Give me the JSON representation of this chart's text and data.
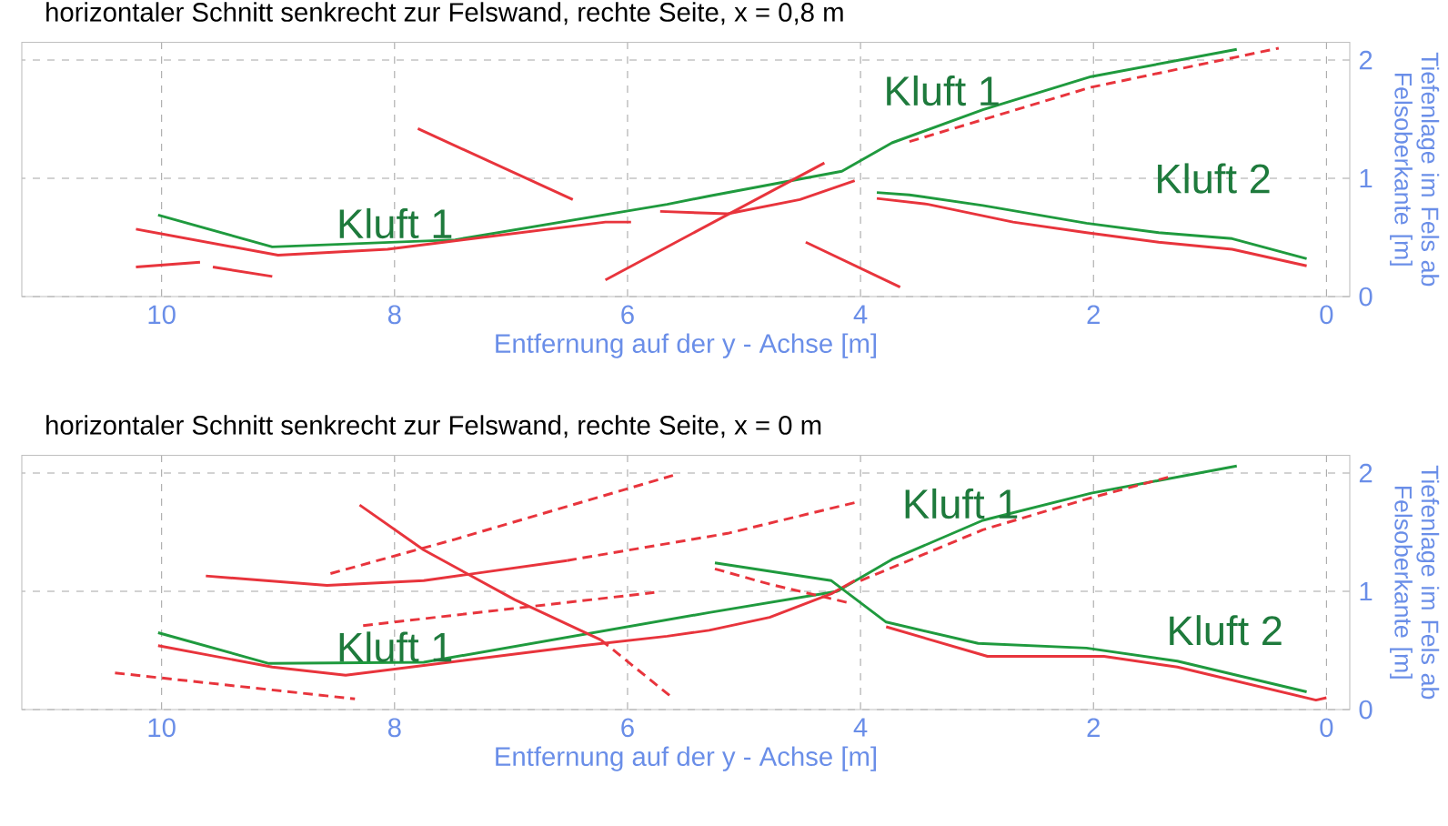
{
  "chart_data": [
    {
      "type": "line",
      "title": "horizontaler Schnitt senkrecht zur Felswand, rechte Seite, x = 0,8 m",
      "xlabel": "Entfernung auf der y - Achse [m]",
      "ylabel": "Tiefenlage im Fels ab Felsoberkante [m]",
      "xlim": [
        11.2,
        -0.2
      ],
      "xticks": [
        10,
        8,
        6,
        4,
        2,
        0
      ],
      "ylim": [
        0,
        2.15
      ],
      "yticks": [
        0,
        1,
        2
      ],
      "grid": true,
      "annotations": [
        "Kluft 1",
        "Kluft 1",
        "Kluft 2"
      ],
      "series": [
        {
          "color": "#1f9a3e",
          "x": [
            10.03,
            9.05,
            7.48,
            5.66,
            5.3,
            4.16,
            3.73,
            2.95,
            2.02,
            0.77
          ],
          "values": [
            0.69,
            0.42,
            0.48,
            0.78,
            0.85,
            1.06,
            1.3,
            1.58,
            1.86,
            2.09
          ]
        },
        {
          "color": "#e8343c",
          "x": [
            10.22,
            9.0,
            8.06,
            6.19,
            5.97
          ],
          "values": [
            0.57,
            0.35,
            0.4,
            0.63,
            0.63
          ]
        },
        {
          "color": "#e8343c",
          "line_style": "dashed",
          "x": [
            3.58,
            2.02,
            0.41
          ],
          "values": [
            1.31,
            1.77,
            2.1
          ]
        },
        {
          "color": "#e8343c",
          "x": [
            5.72,
            5.14,
            4.52,
            4.05
          ],
          "values": [
            0.72,
            0.7,
            0.82,
            0.98
          ]
        },
        {
          "color": "#e8343c",
          "x": [
            6.19,
            4.31
          ],
          "values": [
            0.14,
            1.13
          ]
        },
        {
          "color": "#e8343c",
          "x": [
            7.8,
            6.47
          ],
          "values": [
            1.42,
            0.82
          ]
        },
        {
          "color": "#e8343c",
          "x": [
            10.22,
            9.67
          ],
          "values": [
            0.25,
            0.29
          ]
        },
        {
          "color": "#e8343c",
          "x": [
            9.56,
            9.05
          ],
          "values": [
            0.25,
            0.17
          ]
        },
        {
          "color": "#e8343c",
          "x": [
            4.47,
            3.66
          ],
          "values": [
            0.46,
            0.08
          ]
        },
        {
          "color": "#1f9a3e",
          "x": [
            3.86,
            3.58,
            2.95,
            2.06,
            1.44,
            0.81,
            0.17
          ],
          "values": [
            0.88,
            0.86,
            0.77,
            0.62,
            0.54,
            0.49,
            0.32
          ]
        },
        {
          "color": "#e8343c",
          "x": [
            3.86,
            3.42,
            2.69,
            2.06,
            1.44,
            0.81,
            0.17
          ],
          "values": [
            0.83,
            0.78,
            0.63,
            0.54,
            0.46,
            0.4,
            0.26
          ]
        }
      ]
    },
    {
      "type": "line",
      "title": "horizontaler Schnitt senkrecht zur Felswand, rechte Seite, x = 0 m",
      "xlabel": "Entfernung auf der y - Achse [m]",
      "ylabel": "Tiefenlage im Fels ab Felsoberkante [m]",
      "xlim": [
        11.2,
        -0.2
      ],
      "xticks": [
        10,
        8,
        6,
        4,
        2,
        0
      ],
      "ylim": [
        0,
        2.15
      ],
      "yticks": [
        0,
        1,
        2
      ],
      "grid": true,
      "annotations": [
        "Kluft 1",
        "Kluft 1",
        "Kluft 2"
      ],
      "series": [
        {
          "color": "#1f9a3e",
          "x": [
            10.03,
            9.08,
            7.75,
            5.3,
            4.2,
            3.73,
            2.95,
            2.02,
            0.77
          ],
          "values": [
            0.65,
            0.39,
            0.4,
            0.82,
            1.0,
            1.27,
            1.6,
            1.83,
            2.06
          ]
        },
        {
          "color": "#e8343c",
          "x": [
            10.03,
            9.05,
            8.42,
            6.39,
            5.66,
            5.3,
            4.78,
            4.25,
            4.05
          ],
          "values": [
            0.54,
            0.36,
            0.29,
            0.54,
            0.62,
            0.67,
            0.78,
            0.98,
            1.09
          ]
        },
        {
          "color": "#e8343c",
          "x": [
            9.62,
            8.58,
            7.75,
            6.52
          ],
          "values": [
            1.13,
            1.05,
            1.09,
            1.26
          ]
        },
        {
          "color": "#e8343c",
          "line_style": "dashed",
          "x": [
            8.55,
            7.48,
            5.61
          ],
          "values": [
            1.15,
            1.44,
            1.98
          ]
        },
        {
          "color": "#e8343c",
          "line_style": "dashed",
          "x": [
            6.52,
            5.14,
            4.05
          ],
          "values": [
            1.26,
            1.49,
            1.75
          ]
        },
        {
          "color": "#e8343c",
          "line_style": "dashed",
          "x": [
            8.27,
            5.77
          ],
          "values": [
            0.71,
            0.99
          ]
        },
        {
          "color": "#e8343c",
          "line_style": "dashed",
          "x": [
            10.4,
            8.34
          ],
          "values": [
            0.31,
            0.09
          ]
        },
        {
          "color": "#e8343c",
          "x": [
            8.3,
            7.75,
            6.97,
            6.23
          ],
          "values": [
            1.73,
            1.35,
            0.93,
            0.59
          ]
        },
        {
          "color": "#e8343c",
          "line_style": "dashed",
          "x": [
            6.23,
            5.64
          ],
          "values": [
            0.59,
            0.12
          ]
        },
        {
          "color": "#1f9a3e",
          "x": [
            5.25,
            4.25,
            3.78,
            2.99,
            2.06,
            1.28,
            0.17
          ],
          "values": [
            1.24,
            1.09,
            0.74,
            0.56,
            0.52,
            0.41,
            0.15
          ]
        },
        {
          "color": "#e8343c",
          "line_style": "dashed",
          "x": [
            5.25,
            4.78,
            4.09
          ],
          "values": [
            1.19,
            1.06,
            0.9
          ]
        },
        {
          "color": "#e8343c",
          "x": [
            3.78,
            2.91,
            1.91,
            1.28,
            0.09,
            0.0
          ],
          "values": [
            0.7,
            0.45,
            0.45,
            0.36,
            0.08,
            0.1
          ]
        },
        {
          "color": "#e8343c",
          "line_style": "dashed",
          "x": [
            4.0,
            2.95,
            2.06,
            1.34
          ],
          "values": [
            1.09,
            1.52,
            1.78,
            1.97
          ]
        }
      ]
    }
  ]
}
